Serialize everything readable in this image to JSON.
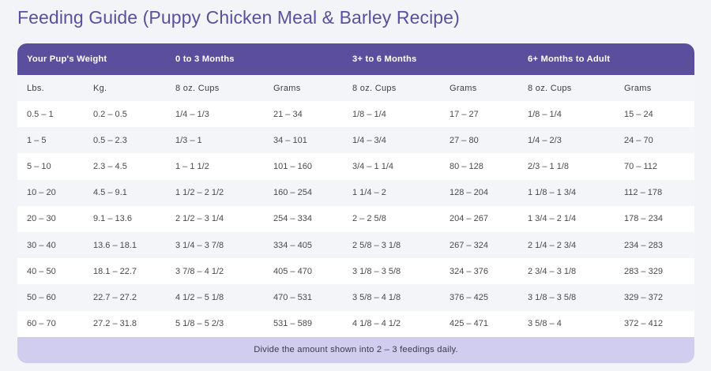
{
  "page": {
    "title": "Feeding Guide (Puppy Chicken Meal & Barley Recipe)"
  },
  "colors": {
    "title": "#5b4f9e",
    "header_bg": "#5b4f9d",
    "header_text": "#ffffff",
    "footer_bg": "#d1cdee",
    "row_alt_bg": "#f4f5f8",
    "page_bg": "#f3f4f8"
  },
  "table": {
    "group_headers": {
      "weight": "Your Pup's Weight",
      "age_0_3": "0 to 3 Months",
      "age_3_6": "3+ to 6 Months",
      "age_6_adult": "6+ Months to Adult"
    },
    "sub_headers": [
      "Lbs.",
      "Kg.",
      "8 oz. Cups",
      "Grams",
      "8 oz. Cups",
      "Grams",
      "8 oz. Cups",
      "Grams"
    ],
    "rows": [
      [
        "0.5 – 1",
        "0.2 – 0.5",
        "1/4 – 1/3",
        "21 – 34",
        "1/8 – 1/4",
        "17 – 27",
        "1/8 – 1/4",
        "15 – 24"
      ],
      [
        "1 – 5",
        "0.5 – 2.3",
        "1/3 – 1",
        "34 – 101",
        "1/4 – 3/4",
        "27 – 80",
        "1/4 – 2/3",
        "24 – 70"
      ],
      [
        "5 – 10",
        "2.3 – 4.5",
        "1 – 1 1/2",
        "101 – 160",
        "3/4 – 1 1/4",
        "80 – 128",
        "2/3 – 1 1/8",
        "70 – 112"
      ],
      [
        "10 – 20",
        "4.5 – 9.1",
        "1 1/2 – 2 1/2",
        "160 – 254",
        "1 1/4 – 2",
        "128 – 204",
        "1 1/8 – 1 3/4",
        "112 – 178"
      ],
      [
        "20 – 30",
        "9.1 – 13.6",
        "2 1/2 – 3 1/4",
        "254 – 334",
        "2 – 2 5/8",
        "204 – 267",
        "1 3/4 – 2 1/4",
        "178 – 234"
      ],
      [
        "30 – 40",
        "13.6 – 18.1",
        "3 1/4 – 3 7/8",
        "334 – 405",
        "2 5/8 – 3 1/8",
        "267 – 324",
        "2 1/4 – 2 3/4",
        "234 – 283"
      ],
      [
        "40 – 50",
        "18.1 – 22.7",
        "3 7/8 – 4 1/2",
        "405 – 470",
        "3 1/8 – 3 5/8",
        "324 – 376",
        "2 3/4 – 3 1/8",
        "283 – 329"
      ],
      [
        "50 – 60",
        "22.7 – 27.2",
        "4 1/2 – 5 1/8",
        "470 – 531",
        "3 5/8 – 4 1/8",
        "376 – 425",
        "3 1/8 – 3 5/8",
        "329 – 372"
      ],
      [
        "60 – 70",
        "27.2 – 31.8",
        "5 1/8 – 5 2/3",
        "531 – 589",
        "4 1/8 – 4 1/2",
        "425 – 471",
        "3 5/8 – 4",
        "372 – 412"
      ]
    ],
    "footer_note": "Divide the amount shown into 2 – 3 feedings daily."
  }
}
